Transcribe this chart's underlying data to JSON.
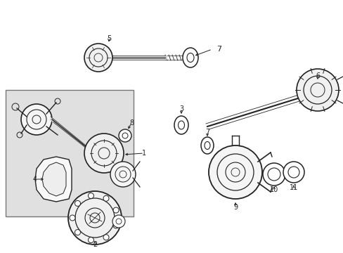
{
  "bg_color": "#ffffff",
  "line_color": "#222222",
  "box_bg": "#e0e0e0",
  "figsize": [
    4.89,
    3.6
  ],
  "dpi": 100
}
